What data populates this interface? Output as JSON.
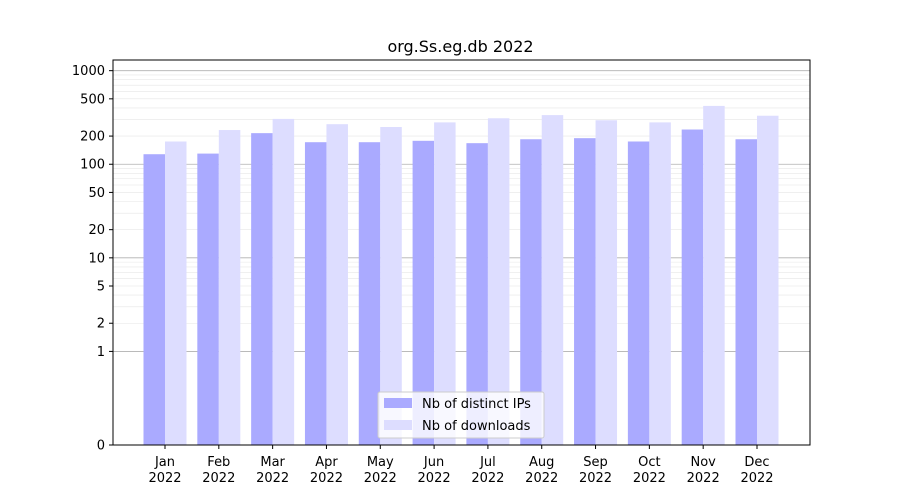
{
  "chart_data": {
    "type": "bar",
    "title": "org.Ss.eg.db 2022",
    "xlabel": "",
    "ylabel": "",
    "y_scale": "symlog",
    "y_ticks": [
      0,
      1,
      2,
      5,
      10,
      20,
      50,
      100,
      200,
      500,
      1000
    ],
    "y_tick_labels": [
      "0",
      "1",
      "2",
      "5",
      "10",
      "20",
      "50",
      "100",
      "200",
      "500",
      "1000"
    ],
    "ylim": [
      0,
      1300
    ],
    "grid": "horizontal",
    "legend_position": "bottom-center",
    "categories": [
      {
        "month": "Jan",
        "year": "2022"
      },
      {
        "month": "Feb",
        "year": "2022"
      },
      {
        "month": "Mar",
        "year": "2022"
      },
      {
        "month": "Apr",
        "year": "2022"
      },
      {
        "month": "May",
        "year": "2022"
      },
      {
        "month": "Jun",
        "year": "2022"
      },
      {
        "month": "Jul",
        "year": "2022"
      },
      {
        "month": "Aug",
        "year": "2022"
      },
      {
        "month": "Sep",
        "year": "2022"
      },
      {
        "month": "Oct",
        "year": "2022"
      },
      {
        "month": "Nov",
        "year": "2022"
      },
      {
        "month": "Dec",
        "year": "2022"
      }
    ],
    "series": [
      {
        "name": "Nb of distinct IPs",
        "color": "#aaaaff",
        "values": [
          128,
          130,
          215,
          172,
          172,
          178,
          168,
          185,
          190,
          175,
          235,
          185
        ]
      },
      {
        "name": "Nb of downloads",
        "color": "#ddddff",
        "values": [
          175,
          232,
          305,
          268,
          250,
          280,
          310,
          335,
          295,
          280,
          420,
          330
        ]
      }
    ]
  }
}
